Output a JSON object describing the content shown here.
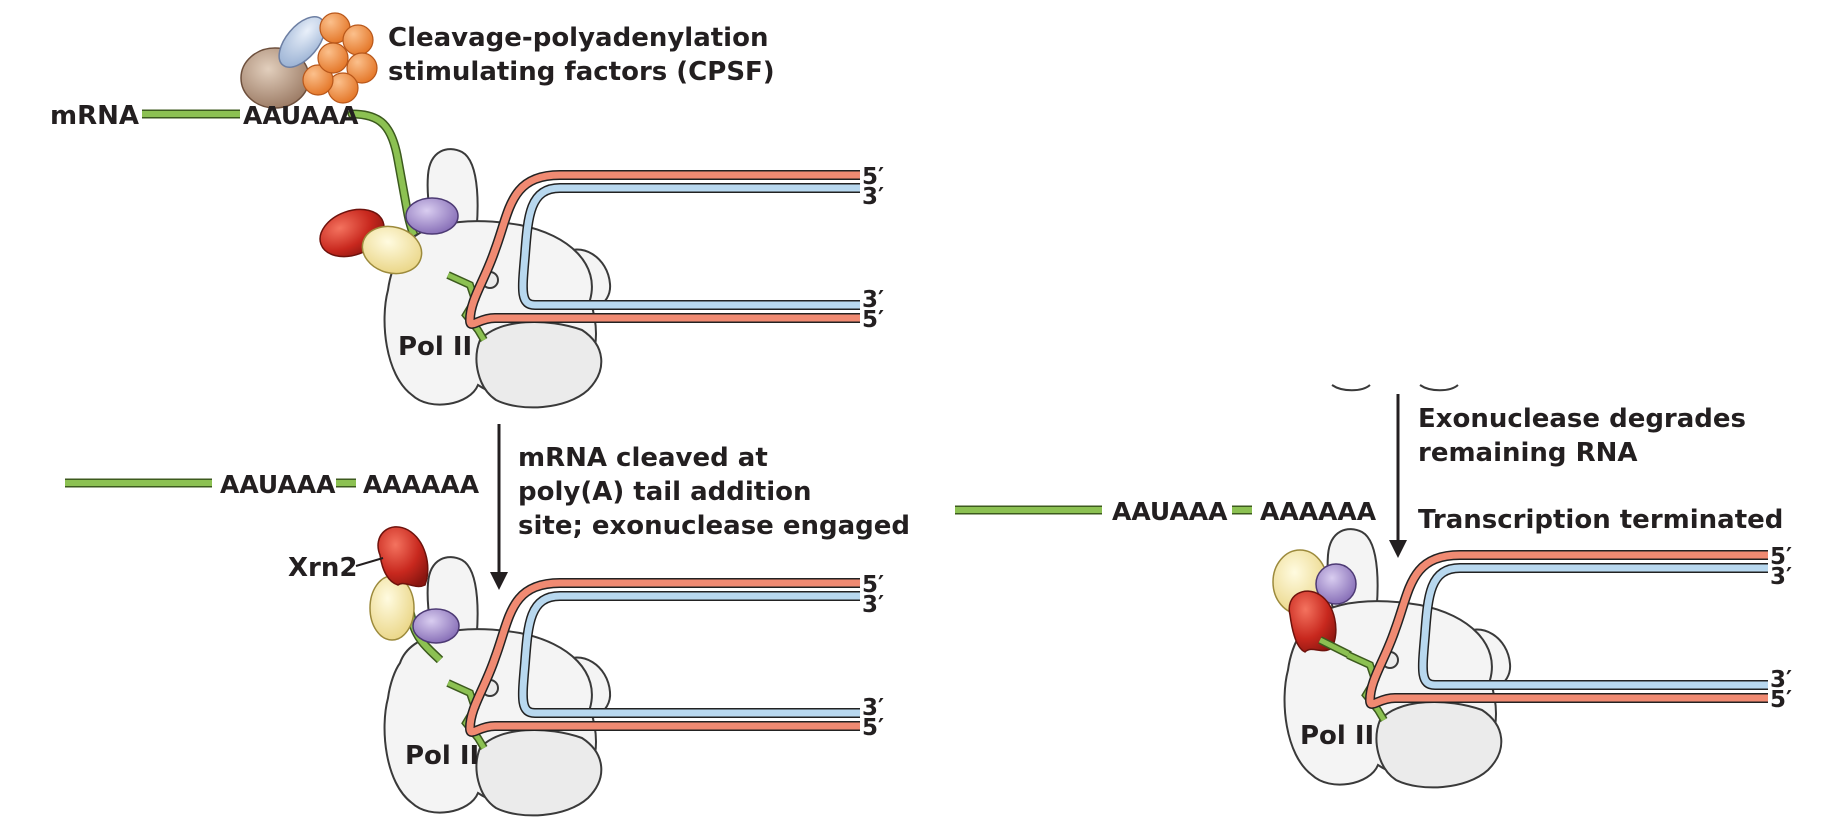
{
  "labels": {
    "cpsf_line1": "Cleavage-polyadenylation",
    "cpsf_line2": "stimulating factors (CPSF)",
    "mrna": "mRNA",
    "aauaaa": "AAUAAA",
    "aaaaaa": "AAAAAA",
    "pol2": "Pol II",
    "xrn2": "Xrn2",
    "five_prime": "5′",
    "three_prime": "3′",
    "step1_line1": "mRNA cleaved at",
    "step1_line2": "poly(A) tail addition",
    "step1_line3": "site; exonuclease engaged",
    "step2_line1": "Exonuclease degrades",
    "step2_line2": "remaining RNA",
    "step2_line3": "Transcription terminated"
  },
  "colors": {
    "rna_green": "#8cc152",
    "dna_template_red": "#f08a72",
    "dna_coding_blue": "#b8d8ef",
    "pol2_gray": "#f2f2f2",
    "xrn2_red": "#c8281e",
    "factor_yellow": "#f3e7a3",
    "factor_purple": "#9b84c4",
    "cpsf_orange": "#f2883a",
    "cpsf_brown": "#b08d74",
    "cpsf_blue": "#b6c8e2",
    "arrow": "#231f20"
  }
}
